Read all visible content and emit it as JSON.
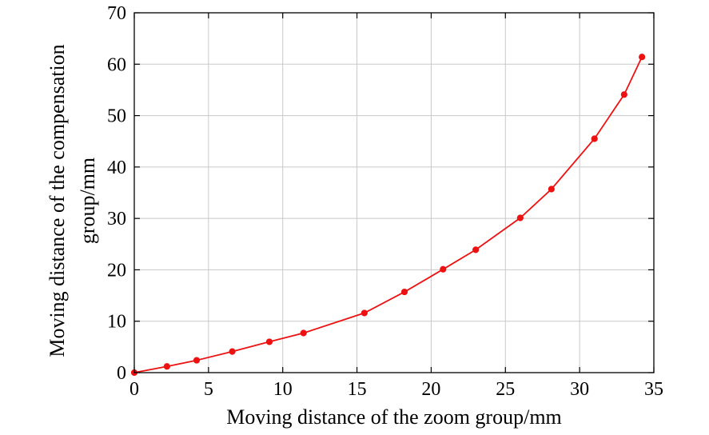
{
  "chart_data": {
    "type": "line",
    "title": "",
    "xlabel": "Moving distance of the zoom group/mm",
    "ylabel_lines": [
      "Moving distance of the compensation",
      "group/mm"
    ],
    "xlim": [
      0,
      35
    ],
    "ylim": [
      0,
      70
    ],
    "xticks": [
      0,
      5,
      10,
      15,
      20,
      25,
      30,
      35
    ],
    "yticks": [
      0,
      10,
      20,
      30,
      40,
      50,
      60,
      70
    ],
    "grid": true,
    "legend": "none",
    "series": [
      {
        "color": "#ee1111",
        "marker": "circle",
        "x": [
          0,
          2.2,
          4.2,
          6.6,
          9.1,
          11.4,
          15.5,
          18.2,
          20.8,
          23.0,
          26.0,
          28.1,
          31.0,
          33.0,
          34.2
        ],
        "y": [
          0,
          1.2,
          2.4,
          4.1,
          6.0,
          7.7,
          11.6,
          15.7,
          20.1,
          23.9,
          30.1,
          35.7,
          45.5,
          54.1,
          61.4
        ]
      }
    ]
  }
}
